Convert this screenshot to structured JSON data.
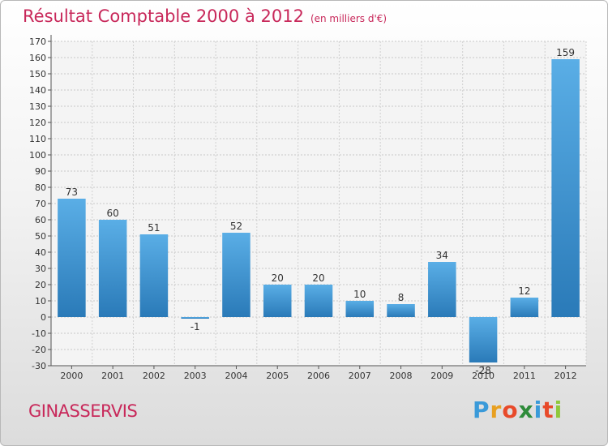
{
  "title": "Résultat Comptable 2000 à 2012",
  "subtitle": "(en milliers d'€)",
  "commune": "GINASSERVIS",
  "logo": {
    "letters": [
      "P",
      "r",
      "o",
      "x",
      "i",
      "t",
      "i"
    ],
    "colors": [
      "#3a9ad9",
      "#e8a020",
      "#e84a2a",
      "#2e8b3a",
      "#3a9ad9",
      "#e84a2a",
      "#8fc83a"
    ]
  },
  "colors": {
    "bar_top": "#5aaee6",
    "bar_bottom": "#2a7ab8",
    "title": "#c8285a"
  },
  "chart_data": {
    "type": "bar",
    "title": "Résultat Comptable 2000 à 2012",
    "xlabel": "",
    "ylabel": "",
    "categories": [
      "2000",
      "2001",
      "2002",
      "2003",
      "2004",
      "2005",
      "2006",
      "2007",
      "2008",
      "2009",
      "2010",
      "2011",
      "2012"
    ],
    "values": [
      73,
      60,
      51,
      -1,
      52,
      20,
      20,
      10,
      8,
      34,
      -28,
      12,
      159
    ],
    "ylim": [
      -30,
      170
    ],
    "yticks": [
      -30,
      -20,
      -10,
      0,
      10,
      20,
      30,
      40,
      50,
      60,
      70,
      80,
      90,
      100,
      110,
      120,
      130,
      140,
      150,
      160,
      170
    ],
    "grid": true
  }
}
